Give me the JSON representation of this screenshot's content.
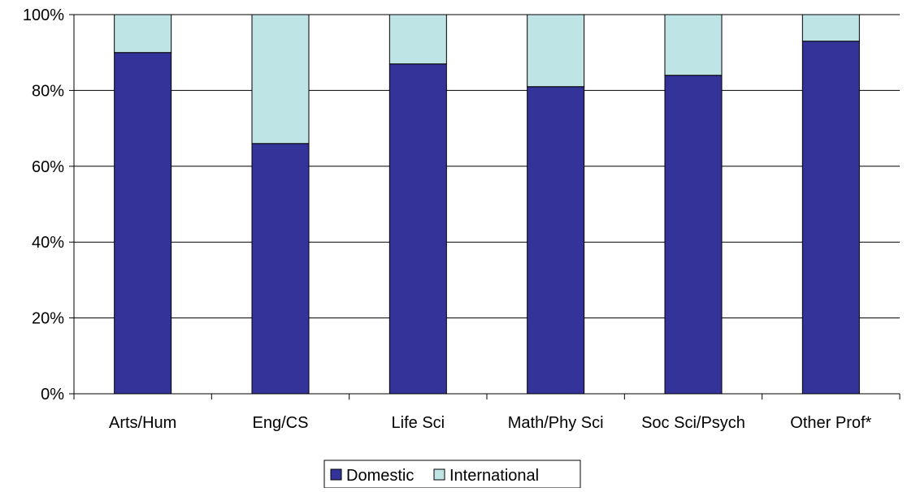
{
  "chart_data": {
    "type": "bar",
    "stacked": true,
    "categories": [
      "Arts/Hum",
      "Eng/CS",
      "Life Sci",
      "Math/Phy Sci",
      "Soc Sci/Psych",
      "Other Prof*"
    ],
    "series": [
      {
        "name": "Domestic",
        "values": [
          90,
          66,
          87,
          81,
          84,
          93
        ],
        "color": "#333399"
      },
      {
        "name": "International",
        "values": [
          10,
          34,
          13,
          19,
          16,
          7
        ],
        "color": "#BFE4E6"
      }
    ],
    "y_ticks": [
      "0%",
      "20%",
      "40%",
      "60%",
      "80%",
      "100%"
    ],
    "ylim": [
      0,
      100
    ],
    "grid": true,
    "legend_position": "bottom"
  }
}
